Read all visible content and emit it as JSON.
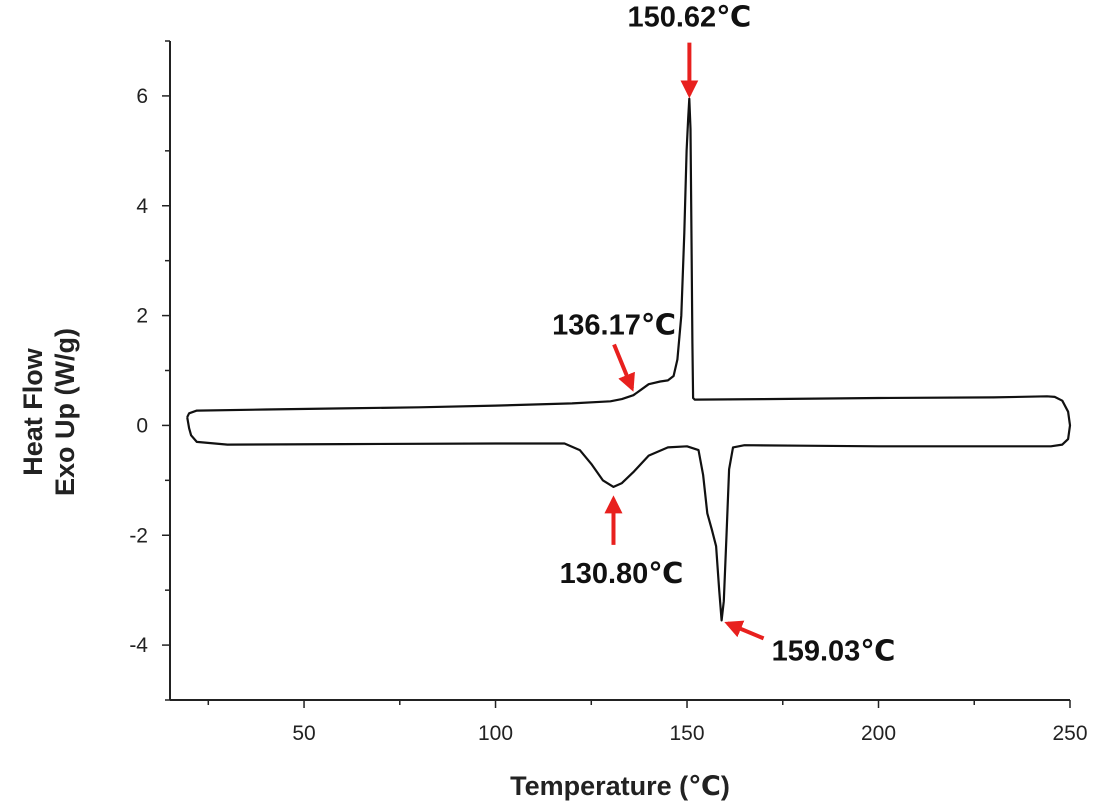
{
  "chart_data": {
    "type": "line",
    "title": "",
    "xlabel": "Temperature (℃)",
    "ylabel_line1": "Heat Flow",
    "ylabel_line2": "Exo Up (W/g)",
    "xlim": [
      15,
      250
    ],
    "ylim": [
      -5,
      7
    ],
    "x_ticks": [
      50,
      100,
      150,
      200,
      250
    ],
    "x_tick_labels": [
      "50",
      "100",
      "150",
      "200",
      "250"
    ],
    "y_ticks": [
      -4,
      -2,
      0,
      2,
      4,
      6
    ],
    "y_tick_labels": [
      "-4",
      "-2",
      "0",
      "2",
      "4",
      "6"
    ],
    "grid": false,
    "line_color": "#111111",
    "annotation_color": "#e8201e",
    "series": [
      {
        "points": [
          [
            19.5,
            0.15
          ],
          [
            20,
            0.22
          ],
          [
            22,
            0.27
          ],
          [
            40,
            0.29
          ],
          [
            60,
            0.31
          ],
          [
            80,
            0.33
          ],
          [
            100,
            0.36
          ],
          [
            120,
            0.4
          ],
          [
            130,
            0.44
          ],
          [
            133,
            0.48
          ],
          [
            136,
            0.55
          ],
          [
            138,
            0.65
          ],
          [
            140,
            0.75
          ],
          [
            143,
            0.8
          ],
          [
            145,
            0.82
          ],
          [
            146.5,
            0.9
          ],
          [
            147.5,
            1.2
          ],
          [
            148.5,
            2.0
          ],
          [
            149.3,
            3.5
          ],
          [
            149.9,
            5.0
          ],
          [
            150.3,
            5.6
          ],
          [
            150.6,
            5.95
          ],
          [
            150.9,
            5.4
          ],
          [
            151.2,
            3.2
          ],
          [
            151.4,
            1.5
          ],
          [
            151.6,
            0.5
          ],
          [
            152,
            0.47
          ],
          [
            170,
            0.48
          ],
          [
            200,
            0.5
          ],
          [
            230,
            0.51
          ],
          [
            244,
            0.53
          ],
          [
            246,
            0.52
          ],
          [
            248,
            0.45
          ],
          [
            249.5,
            0.25
          ],
          [
            250,
            0.0
          ],
          [
            249.5,
            -0.25
          ],
          [
            248,
            -0.35
          ],
          [
            245,
            -0.38
          ],
          [
            220,
            -0.38
          ],
          [
            200,
            -0.38
          ],
          [
            180,
            -0.37
          ],
          [
            165,
            -0.36
          ],
          [
            162,
            -0.4
          ],
          [
            161,
            -0.8
          ],
          [
            160.3,
            -2.0
          ],
          [
            159.6,
            -3.2
          ],
          [
            159.03,
            -3.55
          ],
          [
            158.4,
            -3.0
          ],
          [
            157.6,
            -2.2
          ],
          [
            156.5,
            -1.9
          ],
          [
            155.3,
            -1.6
          ],
          [
            154.2,
            -0.9
          ],
          [
            153,
            -0.45
          ],
          [
            150,
            -0.38
          ],
          [
            145,
            -0.4
          ],
          [
            140,
            -0.55
          ],
          [
            136,
            -0.85
          ],
          [
            133,
            -1.05
          ],
          [
            130.8,
            -1.12
          ],
          [
            128,
            -1.0
          ],
          [
            125,
            -0.7
          ],
          [
            122,
            -0.45
          ],
          [
            118,
            -0.33
          ],
          [
            100,
            -0.33
          ],
          [
            60,
            -0.34
          ],
          [
            30,
            -0.35
          ],
          [
            22,
            -0.3
          ],
          [
            20.5,
            -0.18
          ],
          [
            20,
            -0.05
          ],
          [
            19.5,
            0.15
          ]
        ]
      }
    ],
    "annotations": [
      {
        "text": "150.62℃",
        "x": 150.62,
        "y": 5.95,
        "direction": "down"
      },
      {
        "text": "136.17℃",
        "x": 136.17,
        "y": 0.6,
        "direction": "down-right"
      },
      {
        "text": "130.80℃",
        "x": 130.8,
        "y": -1.12,
        "direction": "up"
      },
      {
        "text": "159.03℃",
        "x": 159.03,
        "y": -3.55,
        "direction": "up-left"
      }
    ]
  }
}
